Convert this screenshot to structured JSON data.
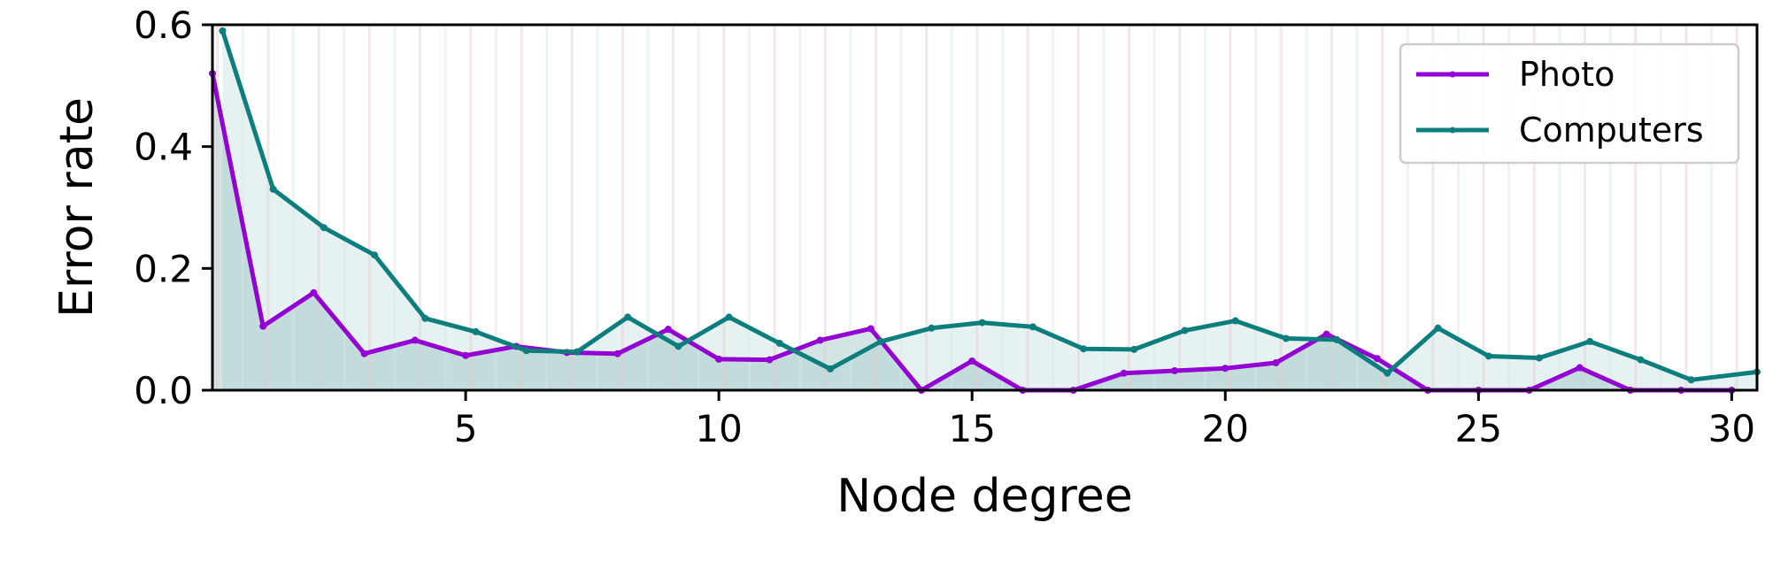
{
  "chart_data": {
    "type": "line",
    "title": "",
    "xlabel": "Node degree",
    "ylabel": "Error rate",
    "xlim": [
      0,
      30.5
    ],
    "ylim": [
      0,
      0.6
    ],
    "xticks": [
      5,
      10,
      15,
      20,
      25,
      30
    ],
    "xtick_labels": [
      "5",
      "10",
      "15",
      "20",
      "25",
      "30"
    ],
    "yticks": [
      0.0,
      0.2,
      0.4,
      0.6
    ],
    "ytick_labels": [
      "0.0",
      "0.2",
      "0.4",
      "0.6"
    ],
    "grid": false,
    "legend_position": "top-right",
    "series": [
      {
        "name": "Photo",
        "color": "#9400D3",
        "fill": "#7fb3b3",
        "x": [
          0,
          1,
          2,
          3,
          4,
          5,
          6,
          7,
          8,
          9,
          10,
          11,
          12,
          13,
          14,
          15,
          16,
          17,
          18,
          19,
          20,
          21,
          22,
          23,
          24,
          25,
          26,
          27,
          28,
          29,
          30
        ],
        "y": [
          0.52,
          0.105,
          0.16,
          0.06,
          0.082,
          0.057,
          0.072,
          0.062,
          0.06,
          0.1,
          0.051,
          0.05,
          0.082,
          0.101,
          0.0,
          0.048,
          0.0,
          0.0,
          0.028,
          0.032,
          0.036,
          0.045,
          0.092,
          0.052,
          0.0,
          0.0,
          0.0,
          0.037,
          0.0,
          0.0,
          0.0
        ]
      },
      {
        "name": "Computers",
        "color": "#0d7e7e",
        "fill": "#b8d9d9",
        "x": [
          0.2,
          1.2,
          2.2,
          3.2,
          4.2,
          5.2,
          6.2,
          7.2,
          8.2,
          9.2,
          10.2,
          11.2,
          12.2,
          13.2,
          14.2,
          15.2,
          16.2,
          17.2,
          18.2,
          19.2,
          20.2,
          21.2,
          22.2,
          23.2,
          24.2,
          25.2,
          26.2,
          27.2,
          28.2,
          29.2,
          30.5
        ],
        "y": [
          0.59,
          0.33,
          0.267,
          0.222,
          0.118,
          0.096,
          0.065,
          0.063,
          0.12,
          0.072,
          0.12,
          0.077,
          0.035,
          0.08,
          0.102,
          0.111,
          0.104,
          0.068,
          0.067,
          0.098,
          0.114,
          0.085,
          0.083,
          0.028,
          0.102,
          0.056,
          0.053,
          0.08,
          0.05,
          0.017,
          0.03
        ]
      }
    ]
  }
}
